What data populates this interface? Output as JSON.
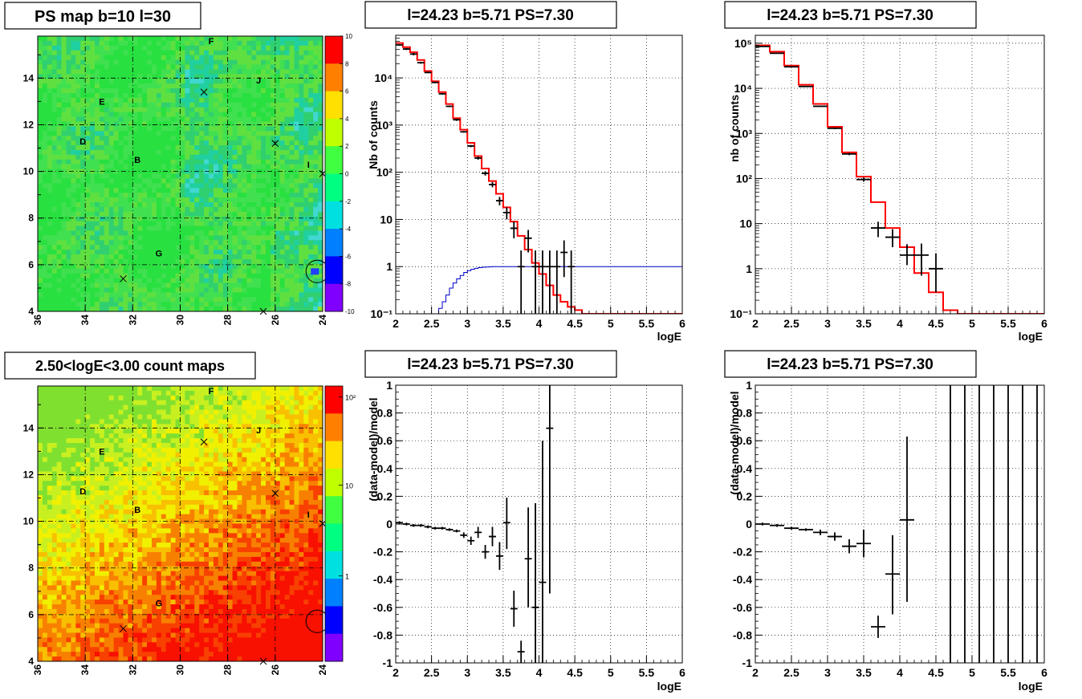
{
  "chart_data": [
    {
      "id": "ps-map",
      "type": "heatmap",
      "title": "PS map b=10 l=30",
      "x_ticks": [
        "36",
        "34",
        "32",
        "30",
        "28",
        "26",
        "24"
      ],
      "y_ticks": [
        "4",
        "6",
        "8",
        "10",
        "12",
        "14"
      ],
      "xlim": [
        36,
        24
      ],
      "ylim": [
        4,
        15.8
      ],
      "grid": true,
      "colorbar": {
        "scale": "linear",
        "range": [
          -10,
          10
        ],
        "ticks": [
          "10",
          "8",
          "6",
          "4",
          "2",
          "0",
          "-2",
          "-4",
          "-6",
          "-8",
          "-10"
        ],
        "stops": [
          "#ff0000",
          "#ff8000",
          "#ffe000",
          "#c0ff00",
          "#40ff40",
          "#00ff80",
          "#00e0e0",
          "#0080ff",
          "#0000ff",
          "#8000ff"
        ]
      },
      "field_colors": [
        "#28e040",
        "#40e050",
        "#60e040",
        "#30d070",
        "#20d0a0",
        "#40d8d0",
        "#90e020"
      ],
      "labels": [
        {
          "text": "F",
          "l": 28.7,
          "b": 15.6
        },
        {
          "text": "J",
          "l": 26.7,
          "b": 13.9
        },
        {
          "text": "E",
          "l": 33.3,
          "b": 13.0
        },
        {
          "text": "D",
          "l": 34.1,
          "b": 11.3
        },
        {
          "text": "B",
          "l": 31.8,
          "b": 10.5
        },
        {
          "text": "I",
          "l": 24.6,
          "b": 10.3
        },
        {
          "text": "G",
          "l": 30.9,
          "b": 6.5
        }
      ],
      "crosses": [
        {
          "l": 29.0,
          "b": 13.4
        },
        {
          "l": 26.0,
          "b": 11.2
        },
        {
          "l": 24.0,
          "b": 9.9
        },
        {
          "l": 32.4,
          "b": 5.4
        },
        {
          "l": 26.5,
          "b": 4.0
        }
      ],
      "circle": {
        "l": 24.23,
        "b": 5.71
      }
    },
    {
      "id": "count-map",
      "type": "heatmap",
      "title": "2.50<logE<3.00 count maps",
      "x_ticks": [
        "36",
        "34",
        "32",
        "30",
        "28",
        "26",
        "24"
      ],
      "y_ticks": [
        "4",
        "6",
        "8",
        "10",
        "12",
        "14"
      ],
      "xlim": [
        36,
        24
      ],
      "ylim": [
        4,
        15.8
      ],
      "grid": true,
      "colorbar": {
        "scale": "log",
        "ticks": [
          "10²",
          "10",
          "1"
        ],
        "stops": [
          "#ff0000",
          "#ff8000",
          "#ffe000",
          "#c0ff00",
          "#40ff40",
          "#00ff80",
          "#00e0e0",
          "#0080ff",
          "#0000ff",
          "#8000ff"
        ]
      },
      "field_colors": [
        "#80e030",
        "#c8f020",
        "#f0f000",
        "#f8c000",
        "#f88000",
        "#f84000",
        "#f81000"
      ],
      "labels": [
        {
          "text": "F",
          "l": 28.7,
          "b": 15.6
        },
        {
          "text": "J",
          "l": 26.7,
          "b": 13.9
        },
        {
          "text": "E",
          "l": 33.3,
          "b": 13.0
        },
        {
          "text": "D",
          "l": 34.1,
          "b": 11.3
        },
        {
          "text": "B",
          "l": 31.8,
          "b": 10.5
        },
        {
          "text": "I",
          "l": 24.6,
          "b": 10.3
        },
        {
          "text": "G",
          "l": 30.9,
          "b": 6.5
        }
      ],
      "crosses": [
        {
          "l": 29.0,
          "b": 13.4
        },
        {
          "l": 26.0,
          "b": 11.2
        },
        {
          "l": 24.0,
          "b": 9.9
        },
        {
          "l": 32.4,
          "b": 5.4
        },
        {
          "l": 26.5,
          "b": 4.0
        }
      ],
      "circle": {
        "l": 24.23,
        "b": 5.71
      }
    },
    {
      "id": "spectrum-1",
      "type": "line",
      "title": "l=24.23 b=5.71 PS=7.30",
      "xlabel": "logE",
      "ylabel": "Nb of counts",
      "xlim": [
        2,
        6
      ],
      "ylim": [
        0.1,
        80000
      ],
      "yscale": "log",
      "x_ticks": [
        "2",
        "2.5",
        "3",
        "3.5",
        "4",
        "4.5",
        "5",
        "5.5",
        "6"
      ],
      "y_ticks": [
        {
          "v": 0.1,
          "label": "10⁻¹"
        },
        {
          "v": 1,
          "label": "1"
        },
        {
          "v": 10,
          "label": "10"
        },
        {
          "v": 100,
          "label": "10²"
        },
        {
          "v": 1000,
          "label": "10³"
        },
        {
          "v": 10000,
          "label": "10⁴"
        }
      ],
      "grid": true,
      "model": {
        "color": "#ff0000",
        "edges": [
          2,
          2.1,
          2.2,
          2.3,
          2.4,
          2.5,
          2.6,
          2.7,
          2.8,
          2.9,
          3,
          3.1,
          3.2,
          3.3,
          3.4,
          3.5,
          3.6,
          3.7,
          3.8,
          3.9,
          4,
          4.1,
          4.2,
          4.3,
          4.4,
          4.5,
          4.6,
          4.7,
          6
        ],
        "values": [
          55000,
          45000,
          35000,
          24000,
          14000,
          8500,
          5000,
          2800,
          1400,
          800,
          420,
          220,
          120,
          65,
          35,
          18,
          9,
          4.5,
          2.3,
          1.2,
          0.7,
          0.4,
          0.25,
          0.18,
          0.14,
          0.12,
          0.1,
          0.1
        ]
      },
      "acceptance": {
        "color": "#0000cc",
        "edges": [
          2,
          2.6,
          2.65,
          2.7,
          2.75,
          2.8,
          2.85,
          2.9,
          2.95,
          3,
          3.05,
          3.1,
          3.15,
          3.2,
          3.25,
          3.3,
          3.35,
          3.4,
          3.45,
          3.5,
          6
        ],
        "values": [
          0.1,
          0.13,
          0.18,
          0.25,
          0.35,
          0.45,
          0.55,
          0.65,
          0.75,
          0.82,
          0.88,
          0.92,
          0.95,
          0.97,
          0.98,
          0.99,
          1.0,
          1.0,
          1.0,
          1.0
        ]
      },
      "points": [
        {
          "x": 2.05,
          "y": 50000,
          "xe": 0.05,
          "lo": 48000,
          "hi": 52000
        },
        {
          "x": 2.15,
          "y": 41000,
          "xe": 0.05,
          "lo": 39000,
          "hi": 43000
        },
        {
          "x": 2.25,
          "y": 32000,
          "xe": 0.05,
          "lo": 30000,
          "hi": 34000
        },
        {
          "x": 2.35,
          "y": 21000,
          "xe": 0.05,
          "lo": 20000,
          "hi": 22000
        },
        {
          "x": 2.45,
          "y": 13000,
          "xe": 0.05,
          "lo": 12500,
          "hi": 13500
        },
        {
          "x": 2.55,
          "y": 8000,
          "xe": 0.05,
          "lo": 7700,
          "hi": 8300
        },
        {
          "x": 2.65,
          "y": 4600,
          "xe": 0.05,
          "lo": 4400,
          "hi": 4800
        },
        {
          "x": 2.75,
          "y": 2500,
          "xe": 0.05,
          "lo": 2400,
          "hi": 2600
        },
        {
          "x": 2.85,
          "y": 1300,
          "xe": 0.05,
          "lo": 1230,
          "hi": 1370
        },
        {
          "x": 2.95,
          "y": 720,
          "xe": 0.05,
          "lo": 690,
          "hi": 750
        },
        {
          "x": 3.05,
          "y": 360,
          "xe": 0.05,
          "lo": 340,
          "hi": 380
        },
        {
          "x": 3.15,
          "y": 200,
          "xe": 0.05,
          "lo": 185,
          "hi": 215
        },
        {
          "x": 3.25,
          "y": 95,
          "xe": 0.05,
          "lo": 85,
          "hi": 105
        },
        {
          "x": 3.35,
          "y": 55,
          "xe": 0.05,
          "lo": 48,
          "hi": 62
        },
        {
          "x": 3.45,
          "y": 25,
          "xe": 0.05,
          "lo": 20,
          "hi": 30
        },
        {
          "x": 3.55,
          "y": 14,
          "xe": 0.05,
          "lo": 10,
          "hi": 18
        },
        {
          "x": 3.65,
          "y": 6.5,
          "xe": 0.05,
          "lo": 4,
          "hi": 9
        },
        {
          "x": 3.75,
          "y": 1.0,
          "xe": 0.05,
          "lo": 0.1,
          "hi": 2.2
        },
        {
          "x": 3.85,
          "y": 4.0,
          "xe": 0.05,
          "lo": 2,
          "hi": 6
        },
        {
          "x": 3.95,
          "y": 1.0,
          "xe": 0.05,
          "lo": 0.1,
          "hi": 2.2
        },
        {
          "x": 4.05,
          "y": 1.0,
          "xe": 0.05,
          "lo": 0.1,
          "hi": 2.2
        },
        {
          "x": 4.15,
          "y": 1.0,
          "xe": 0.05,
          "lo": 0.1,
          "hi": 2.2
        },
        {
          "x": 4.25,
          "y": 1.0,
          "xe": 0.05,
          "lo": 0.1,
          "hi": 2.2
        },
        {
          "x": 4.35,
          "y": 2.0,
          "xe": 0.05,
          "lo": 0.6,
          "hi": 3.6
        },
        {
          "x": 4.45,
          "y": 1.0,
          "xe": 0.05,
          "lo": 0.1,
          "hi": 2.2
        }
      ]
    },
    {
      "id": "spectrum-2",
      "type": "line",
      "title": "l=24.23 b=5.71 PS=7.30",
      "xlabel": "logE",
      "ylabel": "nb of counts",
      "xlim": [
        2,
        6
      ],
      "ylim": [
        0.1,
        150000
      ],
      "yscale": "log",
      "x_ticks": [
        "2",
        "2.5",
        "3",
        "3.5",
        "4",
        "4.5",
        "5",
        "5.5",
        "6"
      ],
      "y_ticks": [
        {
          "v": 0.1,
          "label": "10⁻¹"
        },
        {
          "v": 1,
          "label": "1"
        },
        {
          "v": 10,
          "label": "10"
        },
        {
          "v": 100,
          "label": "10²"
        },
        {
          "v": 1000,
          "label": "10³"
        },
        {
          "v": 10000,
          "label": "10⁴"
        },
        {
          "v": 100000,
          "label": "10⁵"
        }
      ],
      "grid": true,
      "model": {
        "color": "#ff0000",
        "edges": [
          2,
          2.2,
          2.4,
          2.6,
          2.8,
          3,
          3.2,
          3.4,
          3.6,
          3.8,
          4,
          4.2,
          4.4,
          4.6,
          4.8,
          6
        ],
        "values": [
          90000,
          65000,
          32000,
          12000,
          4500,
          1400,
          380,
          110,
          30,
          8,
          3,
          0.8,
          0.3,
          0.12,
          0.1
        ]
      },
      "points": [
        {
          "x": 2.1,
          "y": 85000,
          "xe": 0.1,
          "lo": 83000,
          "hi": 87000
        },
        {
          "x": 2.3,
          "y": 60000,
          "xe": 0.1,
          "lo": 58000,
          "hi": 62000
        },
        {
          "x": 2.5,
          "y": 30000,
          "xe": 0.1,
          "lo": 29000,
          "hi": 31000
        },
        {
          "x": 2.7,
          "y": 11000,
          "xe": 0.1,
          "lo": 10600,
          "hi": 11400
        },
        {
          "x": 2.9,
          "y": 4000,
          "xe": 0.1,
          "lo": 3850,
          "hi": 4150
        },
        {
          "x": 3.1,
          "y": 1300,
          "xe": 0.1,
          "lo": 1240,
          "hi": 1360
        },
        {
          "x": 3.3,
          "y": 350,
          "xe": 0.1,
          "lo": 330,
          "hi": 370
        },
        {
          "x": 3.5,
          "y": 95,
          "xe": 0.1,
          "lo": 85,
          "hi": 105
        },
        {
          "x": 3.7,
          "y": 8,
          "xe": 0.1,
          "lo": 5,
          "hi": 11
        },
        {
          "x": 3.9,
          "y": 5,
          "xe": 0.1,
          "lo": 3,
          "hi": 7.5
        },
        {
          "x": 4.1,
          "y": 2,
          "xe": 0.1,
          "lo": 1.2,
          "hi": 3.5
        },
        {
          "x": 4.3,
          "y": 2,
          "xe": 0.1,
          "lo": 0.7,
          "hi": 3.6
        },
        {
          "x": 4.5,
          "y": 1,
          "xe": 0.1,
          "lo": 0.3,
          "hi": 2.2
        }
      ]
    },
    {
      "id": "residual-1",
      "type": "scatter",
      "title": "l=24.23 b=5.71 PS=7.30",
      "xlabel": "logE",
      "ylabel": "(data-model)/model",
      "xlim": [
        2,
        6
      ],
      "ylim": [
        -1,
        1
      ],
      "x_ticks": [
        "2",
        "2.5",
        "3",
        "3.5",
        "4",
        "4.5",
        "5",
        "5.5",
        "6"
      ],
      "y_ticks": [
        "-1",
        "-0.8",
        "-0.6",
        "-0.4",
        "-0.2",
        "0",
        "0.2",
        "0.4",
        "0.6",
        "0.8",
        "1"
      ],
      "grid": true,
      "points": [
        {
          "x": 2.05,
          "y": 0.01,
          "xe": 0.05,
          "lo": 0.0,
          "hi": 0.02
        },
        {
          "x": 2.15,
          "y": 0.0,
          "xe": 0.05,
          "lo": -0.01,
          "hi": 0.01
        },
        {
          "x": 2.25,
          "y": -0.01,
          "xe": 0.05,
          "lo": -0.02,
          "hi": 0.0
        },
        {
          "x": 2.35,
          "y": -0.01,
          "xe": 0.05,
          "lo": -0.02,
          "hi": 0.0
        },
        {
          "x": 2.45,
          "y": -0.02,
          "xe": 0.05,
          "lo": -0.03,
          "hi": -0.01
        },
        {
          "x": 2.55,
          "y": -0.03,
          "xe": 0.05,
          "lo": -0.04,
          "hi": -0.02
        },
        {
          "x": 2.65,
          "y": -0.03,
          "xe": 0.05,
          "lo": -0.04,
          "hi": -0.02
        },
        {
          "x": 2.75,
          "y": -0.04,
          "xe": 0.05,
          "lo": -0.05,
          "hi": -0.03
        },
        {
          "x": 2.85,
          "y": -0.05,
          "xe": 0.05,
          "lo": -0.06,
          "hi": -0.04
        },
        {
          "x": 2.95,
          "y": -0.08,
          "xe": 0.05,
          "lo": -0.1,
          "hi": -0.06
        },
        {
          "x": 3.05,
          "y": -0.12,
          "xe": 0.05,
          "lo": -0.15,
          "hi": -0.09
        },
        {
          "x": 3.15,
          "y": -0.06,
          "xe": 0.05,
          "lo": -0.1,
          "hi": -0.02
        },
        {
          "x": 3.25,
          "y": -0.2,
          "xe": 0.05,
          "lo": -0.25,
          "hi": -0.15
        },
        {
          "x": 3.35,
          "y": -0.09,
          "xe": 0.05,
          "lo": -0.16,
          "hi": -0.02
        },
        {
          "x": 3.45,
          "y": -0.23,
          "xe": 0.05,
          "lo": -0.33,
          "hi": -0.13
        },
        {
          "x": 3.55,
          "y": 0.01,
          "xe": 0.05,
          "lo": -0.18,
          "hi": 0.19
        },
        {
          "x": 3.65,
          "y": -0.61,
          "xe": 0.05,
          "lo": -0.74,
          "hi": -0.48
        },
        {
          "x": 3.75,
          "y": -0.92,
          "xe": 0.05,
          "lo": -1.0,
          "hi": -0.84
        },
        {
          "x": 3.85,
          "y": -0.25,
          "xe": 0.05,
          "lo": -0.6,
          "hi": 0.12
        },
        {
          "x": 3.95,
          "y": -0.6,
          "xe": 0.05,
          "lo": -1.0,
          "hi": 0.15
        },
        {
          "x": 4.05,
          "y": -0.42,
          "xe": 0.05,
          "lo": -1.0,
          "hi": 0.6
        },
        {
          "x": 4.15,
          "y": 0.69,
          "xe": 0.05,
          "lo": -0.5,
          "hi": 1.0
        }
      ]
    },
    {
      "id": "residual-2",
      "type": "scatter",
      "title": "l=24.23 b=5.71 PS=7.30",
      "xlabel": "logE",
      "ylabel": "(data-model)/model",
      "xlim": [
        2,
        6
      ],
      "ylim": [
        -1,
        1
      ],
      "x_ticks": [
        "2",
        "2.5",
        "3",
        "3.5",
        "4",
        "4.5",
        "5",
        "5.5",
        "6"
      ],
      "y_ticks": [
        "-1",
        "-0.8",
        "-0.6",
        "-0.4",
        "-0.2",
        "0",
        "0.2",
        "0.4",
        "0.6",
        "0.8",
        "1"
      ],
      "grid": true,
      "points": [
        {
          "x": 2.1,
          "y": 0.0,
          "xe": 0.1,
          "lo": -0.01,
          "hi": 0.01
        },
        {
          "x": 2.3,
          "y": -0.01,
          "xe": 0.1,
          "lo": -0.02,
          "hi": 0.0
        },
        {
          "x": 2.5,
          "y": -0.03,
          "xe": 0.1,
          "lo": -0.04,
          "hi": -0.02
        },
        {
          "x": 2.7,
          "y": -0.04,
          "xe": 0.1,
          "lo": -0.05,
          "hi": -0.03
        },
        {
          "x": 2.9,
          "y": -0.06,
          "xe": 0.1,
          "lo": -0.08,
          "hi": -0.04
        },
        {
          "x": 3.1,
          "y": -0.09,
          "xe": 0.1,
          "lo": -0.12,
          "hi": -0.06
        },
        {
          "x": 3.3,
          "y": -0.16,
          "xe": 0.1,
          "lo": -0.21,
          "hi": -0.11
        },
        {
          "x": 3.5,
          "y": -0.14,
          "xe": 0.1,
          "lo": -0.24,
          "hi": -0.04
        },
        {
          "x": 3.7,
          "y": -0.74,
          "xe": 0.1,
          "lo": -0.82,
          "hi": -0.66
        },
        {
          "x": 3.9,
          "y": -0.36,
          "xe": 0.1,
          "lo": -0.65,
          "hi": -0.08
        },
        {
          "x": 4.1,
          "y": 0.03,
          "xe": 0.1,
          "lo": -0.56,
          "hi": 0.63
        },
        {
          "x": 4.7,
          "y": 0.0,
          "xe": 0,
          "lo": -1.0,
          "hi": 1.0
        },
        {
          "x": 4.9,
          "y": 0.0,
          "xe": 0,
          "lo": -1.0,
          "hi": 1.0
        },
        {
          "x": 5.1,
          "y": 0.0,
          "xe": 0,
          "lo": -1.0,
          "hi": 1.0
        },
        {
          "x": 5.3,
          "y": 0.0,
          "xe": 0,
          "lo": -1.0,
          "hi": 1.0
        },
        {
          "x": 5.5,
          "y": 0.0,
          "xe": 0,
          "lo": -1.0,
          "hi": 1.0
        },
        {
          "x": 5.7,
          "y": 0.0,
          "xe": 0,
          "lo": -1.0,
          "hi": 1.0
        },
        {
          "x": 5.9,
          "y": 0.0,
          "xe": 0,
          "lo": -1.0,
          "hi": 1.0
        }
      ]
    }
  ]
}
